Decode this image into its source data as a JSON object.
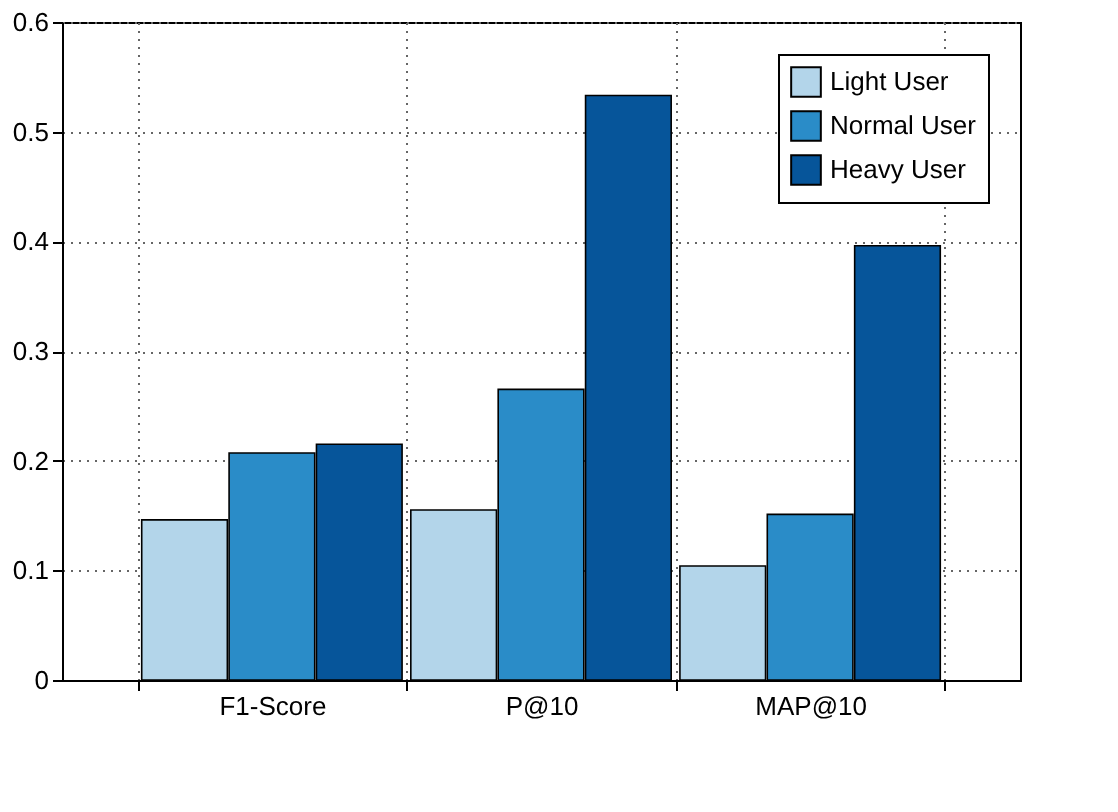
{
  "chart_data": {
    "type": "bar",
    "categories": [
      "F1-Score",
      "P@10",
      "MAP@10"
    ],
    "series": [
      {
        "name": "Light User",
        "color": "#b3d5ea",
        "values": [
          0.146,
          0.155,
          0.104
        ]
      },
      {
        "name": "Normal User",
        "color": "#2a8cc8",
        "values": [
          0.207,
          0.265,
          0.151
        ]
      },
      {
        "name": "Heavy User",
        "color": "#06559a",
        "values": [
          0.215,
          0.533,
          0.396
        ]
      }
    ],
    "ylim": [
      0,
      0.6
    ],
    "yticks": [
      0,
      0.1,
      0.2,
      0.3,
      0.4,
      0.5,
      0.6
    ],
    "grid": true,
    "legend": "top right"
  }
}
